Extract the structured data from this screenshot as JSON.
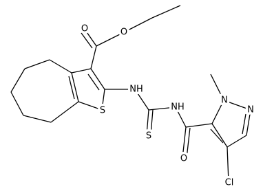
{
  "atoms": [
    "O",
    "O",
    "NH",
    "S",
    "S",
    "NH",
    "N",
    "N",
    "O",
    "Cl"
  ]
}
